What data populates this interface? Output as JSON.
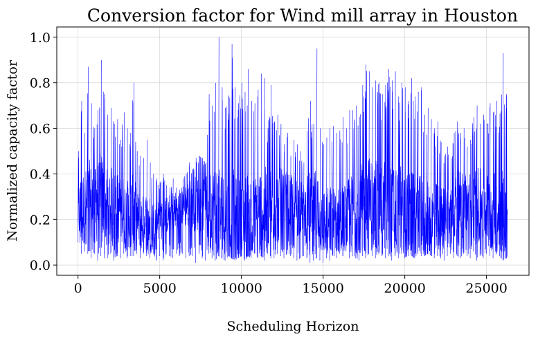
{
  "chart_data": {
    "type": "line",
    "title": "Conversion factor for Wind mill array in Houston",
    "xlabel": "Scheduling Horizon",
    "ylabel": "Normalized capacity factor",
    "xlim": [
      -1300,
      27600
    ],
    "ylim": [
      -0.045,
      1.045
    ],
    "xticks": [
      0,
      5000,
      10000,
      15000,
      20000,
      25000
    ],
    "yticks": [
      0.0,
      0.2,
      0.4,
      0.6,
      0.8,
      1.0
    ],
    "xtick_labels": [
      "0",
      "5000",
      "10000",
      "15000",
      "20000",
      "25000"
    ],
    "ytick_labels": [
      "0.0",
      "0.2",
      "0.4",
      "0.6",
      "0.8",
      "1.0"
    ],
    "grid": true,
    "colors": {
      "series": "#0000ff",
      "grid": "#d9d9d9",
      "axes": "#000000"
    },
    "series": [
      {
        "n_points": 26280,
        "x": [
          0,
          200,
          400,
          600,
          800,
          1000,
          1200,
          1400,
          1600,
          1800,
          2000,
          2200,
          2400,
          2600,
          2800,
          3000,
          3200,
          3400,
          3600,
          3800,
          4000,
          4200,
          4400,
          4600,
          4800,
          5000,
          5200,
          5400,
          5600,
          5800,
          6000,
          6200,
          6400,
          6600,
          6800,
          7000,
          7200,
          7400,
          7600,
          7800,
          8000,
          8200,
          8400,
          8600,
          8800,
          9000,
          9200,
          9400,
          9600,
          9800,
          10000,
          10200,
          10400,
          10600,
          10800,
          11000,
          11200,
          11400,
          11600,
          11800,
          12000,
          12200,
          12400,
          12600,
          12800,
          13000,
          13200,
          13400,
          13600,
          13800,
          14000,
          14200,
          14400,
          14600,
          14800,
          15000,
          15200,
          15400,
          15600,
          15800,
          16000,
          16200,
          16400,
          16600,
          16800,
          17000,
          17200,
          17400,
          17600,
          17800,
          18000,
          18200,
          18400,
          18600,
          18800,
          19000,
          19200,
          19400,
          19600,
          19800,
          20000,
          20200,
          20400,
          20600,
          20800,
          21000,
          21200,
          21400,
          21600,
          21800,
          22000,
          22200,
          22400,
          22600,
          22800,
          23000,
          23200,
          23400,
          23600,
          23800,
          24000,
          24200,
          24400,
          24600,
          24800,
          25000,
          25200,
          25400,
          25600,
          25800,
          26000,
          26200
        ],
        "min": [
          0.1,
          0.05,
          0.06,
          0.05,
          0.03,
          0.05,
          0.02,
          0.04,
          0.03,
          0.03,
          0.05,
          0.02,
          0.04,
          0.03,
          0.05,
          0.03,
          0.04,
          0.04,
          0.05,
          0.03,
          0.05,
          0.04,
          0.03,
          0.05,
          0.02,
          0.04,
          0.02,
          0.05,
          0.04,
          0.03,
          0.05,
          0.04,
          0.05,
          0.03,
          0.04,
          0.04,
          0.01,
          0.05,
          0.03,
          0.02,
          0.05,
          0.03,
          0.02,
          0.04,
          0.03,
          0.02,
          0.04,
          0.03,
          0.02,
          0.03,
          0.04,
          0.02,
          0.04,
          0.03,
          0.05,
          0.03,
          0.04,
          0.02,
          0.05,
          0.03,
          0.03,
          0.05,
          0.04,
          0.03,
          0.05,
          0.04,
          0.03,
          0.02,
          0.03,
          0.04,
          0.03,
          0.01,
          0.02,
          0.03,
          0.02,
          0.01,
          0.03,
          0.02,
          0.04,
          0.03,
          0.05,
          0.04,
          0.06,
          0.03,
          0.04,
          0.03,
          0.02,
          0.04,
          0.03,
          0.05,
          0.04,
          0.03,
          0.05,
          0.04,
          0.03,
          0.04,
          0.02,
          0.04,
          0.03,
          0.05,
          0.03,
          0.04,
          0.04,
          0.03,
          0.05,
          0.04,
          0.04,
          0.05,
          0.04,
          0.03,
          0.04,
          0.03,
          0.02,
          0.04,
          0.05,
          0.03,
          0.04,
          0.03,
          0.05,
          0.04,
          0.03,
          0.06,
          0.02,
          0.04,
          0.03,
          0.05,
          0.04,
          0.03,
          0.05,
          0.04,
          0.02,
          0.03
        ],
        "max": [
          0.5,
          0.72,
          0.58,
          0.87,
          0.71,
          0.6,
          0.68,
          0.9,
          0.75,
          0.66,
          0.69,
          0.62,
          0.64,
          0.55,
          0.67,
          0.6,
          0.58,
          0.8,
          0.5,
          0.48,
          0.47,
          0.55,
          0.45,
          0.4,
          0.38,
          0.36,
          0.4,
          0.35,
          0.34,
          0.38,
          0.34,
          0.33,
          0.38,
          0.4,
          0.45,
          0.42,
          0.47,
          0.48,
          0.47,
          0.45,
          0.75,
          0.7,
          0.8,
          1.0,
          0.78,
          0.69,
          0.74,
          0.97,
          0.78,
          0.71,
          0.8,
          0.76,
          0.86,
          0.72,
          0.71,
          0.77,
          0.84,
          0.82,
          0.6,
          0.79,
          0.63,
          0.66,
          0.62,
          0.53,
          0.58,
          0.48,
          0.55,
          0.53,
          0.5,
          0.45,
          0.59,
          0.72,
          0.62,
          0.95,
          0.6,
          0.53,
          0.56,
          0.6,
          0.61,
          0.58,
          0.59,
          0.65,
          0.6,
          0.68,
          0.68,
          0.7,
          0.65,
          0.79,
          0.88,
          0.85,
          0.78,
          0.81,
          0.8,
          0.75,
          0.79,
          0.86,
          0.81,
          0.85,
          0.74,
          0.8,
          0.78,
          0.72,
          0.82,
          0.74,
          0.76,
          0.78,
          0.66,
          0.69,
          0.64,
          0.6,
          0.63,
          0.54,
          0.48,
          0.52,
          0.47,
          0.58,
          0.63,
          0.58,
          0.6,
          0.52,
          0.55,
          0.65,
          0.7,
          0.62,
          0.66,
          0.62,
          0.71,
          0.67,
          0.72,
          0.63,
          0.93,
          0.75
        ]
      }
    ]
  }
}
